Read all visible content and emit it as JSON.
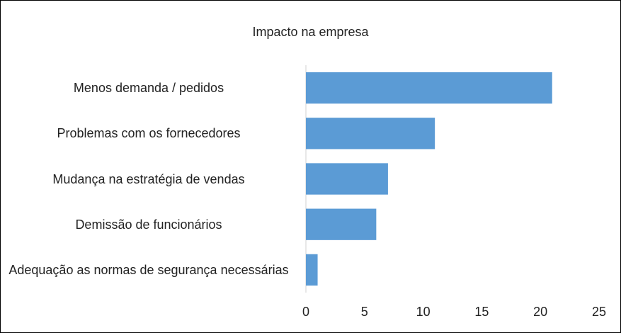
{
  "chart_data": {
    "type": "bar",
    "orientation": "horizontal",
    "title": "Impacto na empresa",
    "categories": [
      "Menos demanda / pedidos",
      "Problemas com os fornecedores",
      "Mudança na estratégia de vendas",
      "Demissão de funcionários",
      "Adequação as normas de segurança necessárias"
    ],
    "values": [
      21,
      11,
      7,
      6,
      1
    ],
    "color": "#5b9bd5",
    "xlim": [
      0,
      25
    ],
    "xticks": [
      0,
      5,
      10,
      15,
      20,
      25
    ],
    "grid": false
  }
}
